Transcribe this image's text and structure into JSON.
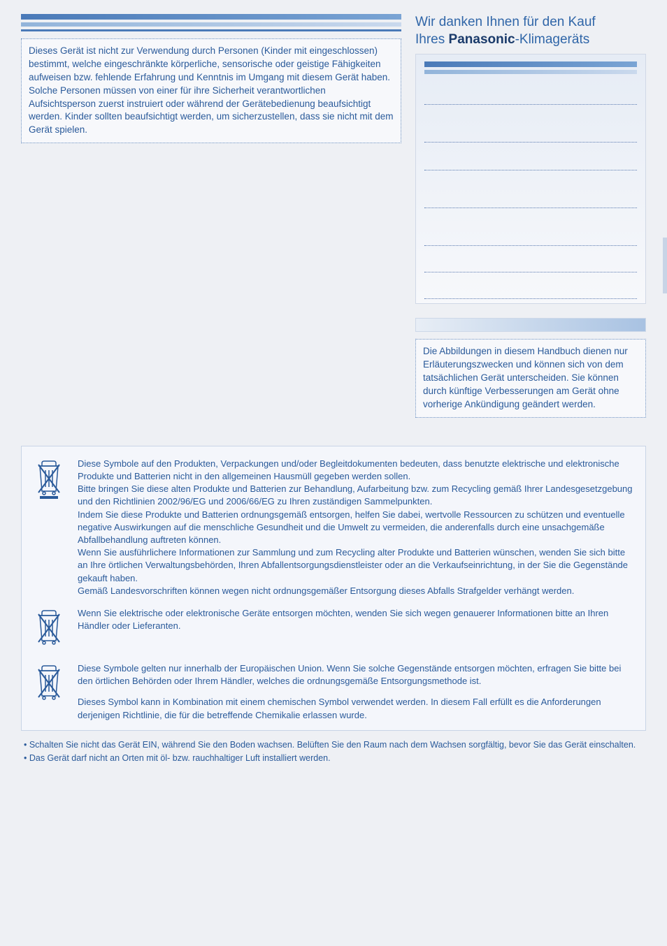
{
  "header": {
    "thanks_line1": "Wir danken Ihnen für den Kauf",
    "thanks_line2_pre": "Ihres ",
    "thanks_brand": "Panasonic",
    "thanks_line2_post": "-Klimageräts"
  },
  "main_warning": "Dieses Gerät ist nicht zur Verwendung durch Personen (Kinder mit eingeschlossen) bestimmt, welche eingeschränkte körperliche, sensorische oder geistige Fähigkeiten aufweisen bzw. fehlende Erfahrung und Kenntnis im Umgang mit diesem Gerät haben. Solche Personen müssen von einer für ihre Sicherheit verantwortlichen Aufsichtsperson zuerst instruiert oder während der Gerätebedienung beaufsichtigt werden. Kinder sollten beaufsichtigt werden, um sicherzustellen, dass sie nicht mit dem Gerät spielen.",
  "toc": {
    "line_count": 7
  },
  "illustration_note": "Die Abbildungen in diesem Handbuch dienen nur Erläuterungszwecken und können sich von dem tatsächlichen Gerät unterscheiden. Sie können durch künftige Verbesserungen am Gerät ohne vorherige Ankündigung geändert werden.",
  "disposal": {
    "row1": "Diese Symbole auf den Produkten, Verpackungen und/oder Begleitdokumenten bedeuten, dass benutzte elektrische und elektronische Produkte und Batterien nicht in den allgemeinen Hausmüll gegeben werden sollen.\nBitte bringen Sie diese alten Produkte und Batterien zur Behandlung, Aufarbeitung bzw. zum Recycling gemäß Ihrer Landesgesetzgebung und den Richtlinien 2002/96/EG und 2006/66/EG zu Ihren zuständigen Sammelpunkten.\nIndem Sie diese Produkte und Batterien ordnungsgemäß entsorgen, helfen Sie dabei, wertvolle Ressourcen zu schützen und eventuelle negative Auswirkungen auf die menschliche Gesundheit und die Umwelt zu vermeiden, die anderenfalls durch eine unsachgemäße Abfallbehandlung auftreten können.\nWenn Sie ausführlichere Informationen zur Sammlung und zum Recycling alter Produkte und Batterien wünschen, wenden Sie sich bitte an Ihre örtlichen Verwaltungsbehörden, Ihren Abfallentsorgungsdienstleister oder an die Verkaufseinrichtung, in der Sie die Gegenstände gekauft haben.\nGemäß Landesvorschriften können wegen nicht ordnungsgemäßer Entsorgung dieses Abfalls Strafgelder verhängt werden.",
    "row2": "Wenn Sie elektrische oder elektronische Geräte entsorgen möchten, wenden Sie sich wegen genauerer Informationen bitte an Ihren Händler oder Lieferanten.",
    "row3_a": "Diese Symbole gelten nur innerhalb der Europäischen Union. Wenn Sie solche Gegenstände entsorgen möchten, erfragen Sie bitte bei den örtlichen Behörden oder Ihrem Händler, welches die ordnungsgemäße Entsorgungsmethode ist.",
    "row3_b": "Dieses Symbol kann in Kombination mit einem chemischen Symbol verwendet werden. In diesem Fall erfüllt es die Anforderungen derjenigen Richtlinie, die für die betreffende Chemikalie erlassen wurde."
  },
  "footer": {
    "bullet1": "• Schalten Sie nicht das Gerät EIN, während Sie den Boden wachsen. Belüften Sie den Raum nach dem Wachsen sorgfältig, bevor Sie das Gerät einschalten.",
    "bullet2": "• Das Gerät darf nicht an Orten mit öl- bzw. rauchhaltiger Luft installiert werden."
  },
  "colors": {
    "text": "#2a5a9a",
    "bar_dark": "#4a7ab8",
    "bar_light": "#92b4da",
    "background": "#eef0f4"
  }
}
